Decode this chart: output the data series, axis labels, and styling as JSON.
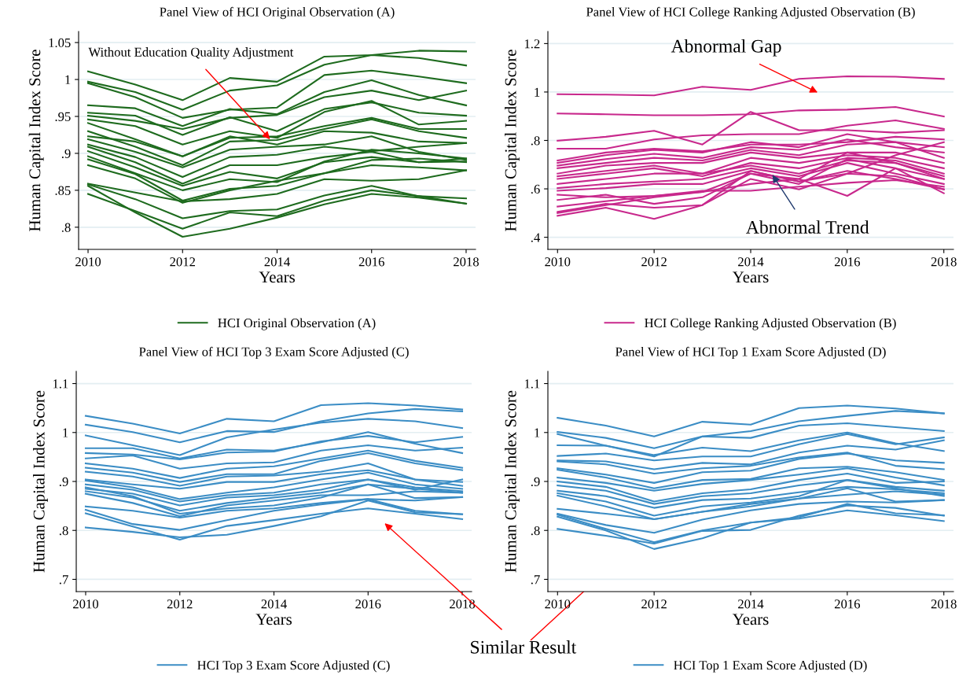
{
  "chart_data": [
    {
      "type": "line",
      "title": "Panel View of HCI Original Observation (A)",
      "xlabel": "Years",
      "ylabel": "Human Capital Index Score",
      "x": [
        2010,
        2011,
        2012,
        2013,
        2014,
        2015,
        2016,
        2017,
        2018
      ],
      "xlim": [
        2009.8,
        2018.2
      ],
      "xticks": [
        2010,
        2012,
        2014,
        2016,
        2018
      ],
      "ylim": [
        0.77,
        1.065
      ],
      "yticks": [
        {
          "value": 0.8,
          "label": ".8"
        },
        {
          "value": 0.85,
          "label": ".85"
        },
        {
          "value": 0.9,
          "label": ".9"
        },
        {
          "value": 0.95,
          "label": ".95"
        },
        {
          "value": 1,
          "label": "1"
        },
        {
          "value": 1.05,
          "label": "1.05"
        }
      ],
      "grid": "y",
      "legend": "bottom",
      "annotations": [
        {
          "text": "Without Education Quality Adjustment",
          "x": 2013.85,
          "y": 0.919
        }
      ],
      "series": [
        {
          "name": "HCI Original Observation (A)",
          "color": "#1e6b1e",
          "values": [
            1.011,
            0.993,
            0.972,
            1.002,
            0.997,
            1.031,
            1.033,
            1.039,
            1.038
          ]
        },
        {
          "color": "#1e6b1e",
          "values": [
            0.997,
            0.983,
            0.959,
            0.985,
            0.992,
            1.02,
            1.033,
            1.029,
            1.019
          ]
        },
        {
          "color": "#1e6b1e",
          "values": [
            0.995,
            0.976,
            0.948,
            0.959,
            0.962,
            1.006,
            1.012,
            1.004,
            0.995
          ]
        },
        {
          "color": "#1e6b1e",
          "values": [
            0.965,
            0.961,
            0.937,
            0.96,
            0.953,
            0.983,
            0.999,
            0.979,
            0.965
          ]
        },
        {
          "color": "#1e6b1e",
          "values": [
            0.951,
            0.944,
            0.933,
            0.948,
            0.952,
            0.976,
            0.985,
            0.972,
            0.985
          ]
        },
        {
          "color": "#1e6b1e",
          "values": [
            0.955,
            0.951,
            0.925,
            0.949,
            0.93,
            0.96,
            0.969,
            0.955,
            0.951
          ]
        },
        {
          "color": "#1e6b1e",
          "values": [
            0.946,
            0.937,
            0.912,
            0.93,
            0.921,
            0.956,
            0.971,
            0.939,
            0.944
          ]
        },
        {
          "color": "#1e6b1e",
          "values": [
            0.941,
            0.919,
            0.896,
            0.921,
            0.923,
            0.937,
            0.948,
            0.933,
            0.933
          ]
        },
        {
          "color": "#1e6b1e",
          "values": [
            0.93,
            0.909,
            0.884,
            0.916,
            0.918,
            0.933,
            0.946,
            0.93,
            0.921
          ]
        },
        {
          "color": "#1e6b1e",
          "values": [
            0.923,
            0.916,
            0.896,
            0.923,
            0.912,
            0.93,
            0.928,
            0.916,
            0.914
          ]
        },
        {
          "color": "#1e6b1e",
          "values": [
            0.919,
            0.902,
            0.881,
            0.905,
            0.909,
            0.912,
            0.923,
            0.902,
            0.891
          ]
        },
        {
          "color": "#1e6b1e",
          "values": [
            0.912,
            0.895,
            0.868,
            0.895,
            0.898,
            0.909,
            0.903,
            0.909,
            0.914
          ]
        },
        {
          "color": "#1e6b1e",
          "values": [
            0.909,
            0.888,
            0.859,
            0.884,
            0.884,
            0.895,
            0.902,
            0.888,
            0.889
          ]
        },
        {
          "color": "#1e6b1e",
          "values": [
            0.903,
            0.881,
            0.856,
            0.875,
            0.866,
            0.888,
            0.895,
            0.888,
            0.893
          ]
        },
        {
          "color": "#1e6b1e",
          "values": [
            0.896,
            0.873,
            0.85,
            0.865,
            0.861,
            0.889,
            0.905,
            0.9,
            0.893
          ]
        },
        {
          "color": "#1e6b1e",
          "values": [
            0.892,
            0.872,
            0.836,
            0.852,
            0.856,
            0.873,
            0.891,
            0.893,
            0.888
          ]
        },
        {
          "color": "#1e6b1e",
          "values": [
            0.884,
            0.866,
            0.833,
            0.85,
            0.863,
            0.873,
            0.884,
            0.881,
            0.877
          ]
        },
        {
          "color": "#1e6b1e",
          "values": [
            0.859,
            0.847,
            0.835,
            0.838,
            0.845,
            0.865,
            0.863,
            0.865,
            0.877
          ]
        },
        {
          "color": "#1e6b1e",
          "values": [
            0.858,
            0.838,
            0.812,
            0.822,
            0.824,
            0.843,
            0.856,
            0.842,
            0.839
          ]
        },
        {
          "color": "#1e6b1e",
          "values": [
            0.845,
            0.822,
            0.798,
            0.82,
            0.815,
            0.836,
            0.85,
            0.842,
            0.832
          ]
        },
        {
          "color": "#1e6b1e",
          "values": [
            0.856,
            0.82,
            0.787,
            0.798,
            0.813,
            0.831,
            0.845,
            0.84,
            0.832
          ]
        }
      ]
    },
    {
      "type": "line",
      "title": "Panel View of HCI College Ranking Adjusted Observation (B)",
      "xlabel": "Years",
      "ylabel": "Human Capital Index Score",
      "x": [
        2010,
        2011,
        2012,
        2013,
        2014,
        2015,
        2016,
        2017,
        2018
      ],
      "xlim": [
        2009.8,
        2018.2
      ],
      "xticks": [
        2010,
        2012,
        2014,
        2016,
        2018
      ],
      "ylim": [
        0.35,
        1.25
      ],
      "yticks": [
        {
          "value": 0.4,
          "label": ".4"
        },
        {
          "value": 0.6,
          "label": ".6"
        },
        {
          "value": 0.8,
          "label": ".8"
        },
        {
          "value": 1,
          "label": "1"
        },
        {
          "value": 1.2,
          "label": "1.2"
        }
      ],
      "grid": "y",
      "legend": "bottom",
      "annotations": [
        "Abnormal Gap",
        {
          "text": "Abnormal Trend",
          "x": 2014.45,
          "y": 0.658
        }
      ],
      "series": [
        {
          "name": "HCI College Ranking Adjusted Observation (B)",
          "color": "#c8288c",
          "values": [
            0.991,
            0.989,
            0.986,
            1.022,
            1.009,
            1.054,
            1.065,
            1.063,
            1.054
          ]
        },
        {
          "color": "#c8288c",
          "values": [
            0.911,
            0.908,
            0.904,
            0.904,
            0.908,
            0.924,
            0.927,
            0.938,
            0.899
          ]
        },
        {
          "color": "#c8288c",
          "values": [
            0.799,
            0.815,
            0.84,
            0.783,
            0.918,
            0.842,
            0.842,
            0.832,
            0.842
          ]
        },
        {
          "color": "#c8288c",
          "values": [
            0.766,
            0.766,
            0.804,
            0.821,
            0.826,
            0.826,
            0.861,
            0.883,
            0.848
          ]
        },
        {
          "color": "#c8288c",
          "values": [
            0.717,
            0.75,
            0.766,
            0.755,
            0.783,
            0.783,
            0.793,
            0.815,
            0.804
          ]
        },
        {
          "color": "#c8288c",
          "values": [
            0.707,
            0.739,
            0.761,
            0.75,
            0.793,
            0.772,
            0.826,
            0.793,
            0.772
          ]
        },
        {
          "color": "#c8288c",
          "values": [
            0.696,
            0.723,
            0.745,
            0.728,
            0.772,
            0.761,
            0.804,
            0.772,
            0.75
          ]
        },
        {
          "color": "#c8288c",
          "values": [
            0.685,
            0.707,
            0.728,
            0.717,
            0.761,
            0.739,
            0.783,
            0.793,
            0.728
          ]
        },
        {
          "color": "#c8288c",
          "values": [
            0.663,
            0.696,
            0.707,
            0.707,
            0.75,
            0.728,
            0.75,
            0.75,
            0.707
          ]
        },
        {
          "color": "#c8288c",
          "values": [
            0.652,
            0.674,
            0.696,
            0.663,
            0.728,
            0.707,
            0.739,
            0.728,
            0.685
          ]
        },
        {
          "color": "#c8288c",
          "values": [
            0.641,
            0.663,
            0.685,
            0.652,
            0.707,
            0.685,
            0.728,
            0.717,
            0.663
          ]
        },
        {
          "color": "#c8288c",
          "values": [
            0.62,
            0.641,
            0.663,
            0.663,
            0.696,
            0.663,
            0.717,
            0.707,
            0.641
          ]
        },
        {
          "color": "#c8288c",
          "values": [
            0.603,
            0.62,
            0.63,
            0.641,
            0.685,
            0.652,
            0.707,
            0.663,
            0.62
          ]
        },
        {
          "color": "#c8288c",
          "values": [
            0.592,
            0.603,
            0.62,
            0.62,
            0.674,
            0.63,
            0.663,
            0.652,
            0.598
          ]
        },
        {
          "color": "#c8288c",
          "values": [
            0.576,
            0.565,
            0.571,
            0.587,
            0.663,
            0.62,
            0.723,
            0.685,
            0.641
          ]
        },
        {
          "color": "#c8288c",
          "values": [
            0.554,
            0.576,
            0.538,
            0.565,
            0.663,
            0.641,
            0.571,
            0.685,
            0.582
          ]
        },
        {
          "color": "#c8288c",
          "values": [
            0.527,
            0.549,
            0.571,
            0.592,
            0.592,
            0.609,
            0.625,
            0.636,
            0.609
          ]
        },
        {
          "color": "#c8288c",
          "values": [
            0.505,
            0.538,
            0.522,
            0.533,
            0.641,
            0.598,
            0.663,
            0.739,
            0.793
          ]
        },
        {
          "color": "#c8288c",
          "values": [
            0.489,
            0.522,
            0.476,
            0.533,
            0.674,
            0.63,
            0.674,
            0.641,
            0.598
          ]
        },
        {
          "color": "#c8288c",
          "values": [
            0.5,
            0.533,
            0.565,
            0.587,
            0.62,
            0.641,
            0.75,
            0.707,
            0.652
          ]
        }
      ]
    },
    {
      "type": "line",
      "title": "Panel View of HCI Top 3 Exam Score Adjusted (C)",
      "xlabel": "Years",
      "ylabel": "Human Capital Index Score",
      "x": [
        2010,
        2011,
        2012,
        2013,
        2014,
        2015,
        2016,
        2017,
        2018
      ],
      "xlim": [
        2009.8,
        2018.2
      ],
      "xticks": [
        2010,
        2012,
        2014,
        2016,
        2018
      ],
      "ylim": [
        0.675,
        1.125
      ],
      "yticks": [
        {
          "value": 0.7,
          "label": ".7"
        },
        {
          "value": 0.8,
          "label": ".8"
        },
        {
          "value": 0.9,
          "label": ".9"
        },
        {
          "value": 1,
          "label": "1"
        },
        {
          "value": 1.1,
          "label": "1.1"
        }
      ],
      "grid": "y",
      "legend": "bottom",
      "annotations": [
        "Similar Result"
      ],
      "series": [
        {
          "name": "HCI Top 3 Exam Score Adjusted (C)",
          "color": "#3b8dc5",
          "values": [
            1.034,
            1.018,
            0.998,
            1.028,
            1.023,
            1.056,
            1.06,
            1.055,
            1.047
          ]
        },
        {
          "color": "#3b8dc5",
          "values": [
            1.016,
            1.001,
            0.98,
            1.003,
            1.001,
            1.023,
            1.039,
            1.048,
            1.043
          ]
        },
        {
          "color": "#3b8dc5",
          "values": [
            0.994,
            0.974,
            0.954,
            0.99,
            1.006,
            1.02,
            1.028,
            1.023,
            1.009
          ]
        },
        {
          "color": "#3b8dc5",
          "values": [
            0.968,
            0.968,
            0.947,
            0.965,
            0.963,
            0.98,
            1.001,
            0.977,
            0.958
          ]
        },
        {
          "color": "#3b8dc5",
          "values": [
            0.958,
            0.955,
            0.945,
            0.959,
            0.961,
            0.982,
            0.993,
            0.98,
            0.991
          ]
        },
        {
          "color": "#3b8dc5",
          "values": [
            0.947,
            0.953,
            0.926,
            0.937,
            0.939,
            0.963,
            0.974,
            0.963,
            0.969
          ]
        },
        {
          "color": "#3b8dc5",
          "values": [
            0.937,
            0.926,
            0.907,
            0.926,
            0.931,
            0.947,
            0.963,
            0.942,
            0.928
          ]
        },
        {
          "color": "#3b8dc5",
          "values": [
            0.928,
            0.918,
            0.899,
            0.915,
            0.915,
            0.942,
            0.958,
            0.937,
            0.923
          ]
        },
        {
          "color": "#3b8dc5",
          "values": [
            0.92,
            0.91,
            0.891,
            0.91,
            0.912,
            0.92,
            0.937,
            0.904,
            0.899
          ]
        },
        {
          "color": "#3b8dc5",
          "values": [
            0.904,
            0.894,
            0.885,
            0.899,
            0.899,
            0.915,
            0.923,
            0.904,
            0.891
          ]
        },
        {
          "color": "#3b8dc5",
          "values": [
            0.902,
            0.888,
            0.864,
            0.877,
            0.888,
            0.904,
            0.918,
            0.894,
            0.885
          ]
        },
        {
          "color": "#3b8dc5",
          "values": [
            0.894,
            0.883,
            0.859,
            0.872,
            0.877,
            0.894,
            0.904,
            0.888,
            0.88
          ]
        },
        {
          "color": "#3b8dc5",
          "values": [
            0.885,
            0.875,
            0.851,
            0.867,
            0.872,
            0.883,
            0.904,
            0.883,
            0.904
          ]
        },
        {
          "color": "#3b8dc5",
          "values": [
            0.88,
            0.867,
            0.84,
            0.856,
            0.867,
            0.877,
            0.894,
            0.885,
            0.877
          ]
        },
        {
          "color": "#3b8dc5",
          "values": [
            0.875,
            0.856,
            0.829,
            0.851,
            0.861,
            0.872,
            0.872,
            0.88,
            0.877
          ]
        },
        {
          "color": "#3b8dc5",
          "values": [
            0.888,
            0.87,
            0.834,
            0.845,
            0.851,
            0.867,
            0.894,
            0.866,
            0.868
          ]
        },
        {
          "color": "#3b8dc5",
          "values": [
            0.849,
            0.84,
            0.826,
            0.84,
            0.845,
            0.856,
            0.864,
            0.861,
            0.868
          ]
        },
        {
          "color": "#3b8dc5",
          "values": [
            0.842,
            0.813,
            0.801,
            0.821,
            0.84,
            0.853,
            0.864,
            0.84,
            0.833
          ]
        },
        {
          "color": "#3b8dc5",
          "values": [
            0.835,
            0.808,
            0.781,
            0.809,
            0.821,
            0.834,
            0.845,
            0.834,
            0.823
          ]
        },
        {
          "color": "#3b8dc5",
          "values": [
            0.806,
            0.797,
            0.786,
            0.791,
            0.809,
            0.829,
            0.861,
            0.837,
            0.833
          ]
        }
      ]
    },
    {
      "type": "line",
      "title": "Panel View of HCI Top 1 Exam Score Adjusted (D)",
      "xlabel": "Years",
      "ylabel": "Human Capital Index Score",
      "x": [
        2010,
        2011,
        2012,
        2013,
        2014,
        2015,
        2016,
        2017,
        2018
      ],
      "xlim": [
        2009.8,
        2018.2
      ],
      "xticks": [
        2010,
        2012,
        2014,
        2016,
        2018
      ],
      "ylim": [
        0.675,
        1.125
      ],
      "yticks": [
        {
          "value": 0.7,
          "label": ".7"
        },
        {
          "value": 0.8,
          "label": ".8"
        },
        {
          "value": 0.9,
          "label": ".9"
        },
        {
          "value": 1,
          "label": "1"
        },
        {
          "value": 1.1,
          "label": "1.1"
        }
      ],
      "grid": "y",
      "legend": "bottom",
      "series": [
        {
          "name": "HCI Top 1 Exam Score Adjusted (D)",
          "color": "#3b8dc5",
          "values": [
            1.03,
            1.014,
            0.992,
            1.022,
            1.016,
            1.05,
            1.055,
            1.049,
            1.039
          ]
        },
        {
          "color": "#3b8dc5",
          "values": [
            1.001,
            0.989,
            0.968,
            0.992,
            1.003,
            1.023,
            1.034,
            1.044,
            1.039
          ]
        },
        {
          "color": "#3b8dc5",
          "values": [
            0.997,
            0.973,
            0.951,
            0.992,
            0.989,
            1.014,
            1.019,
            1.011,
            1.003
          ]
        },
        {
          "color": "#3b8dc5",
          "values": [
            0.974,
            0.973,
            0.954,
            0.969,
            0.962,
            0.984,
            1.0,
            0.978,
            0.962
          ]
        },
        {
          "color": "#3b8dc5",
          "values": [
            0.952,
            0.957,
            0.943,
            0.951,
            0.951,
            0.976,
            0.997,
            0.976,
            0.99
          ]
        },
        {
          "color": "#3b8dc5",
          "values": [
            0.943,
            0.941,
            0.925,
            0.938,
            0.935,
            0.959,
            0.973,
            0.965,
            0.984
          ]
        },
        {
          "color": "#3b8dc5",
          "values": [
            0.941,
            0.935,
            0.916,
            0.927,
            0.932,
            0.949,
            0.959,
            0.932,
            0.925
          ]
        },
        {
          "color": "#3b8dc5",
          "values": [
            0.927,
            0.914,
            0.897,
            0.919,
            0.922,
            0.946,
            0.957,
            0.943,
            0.938
          ]
        },
        {
          "color": "#3b8dc5",
          "values": [
            0.924,
            0.908,
            0.886,
            0.903,
            0.905,
            0.927,
            0.93,
            0.919,
            0.903
          ]
        },
        {
          "color": "#3b8dc5",
          "values": [
            0.908,
            0.897,
            0.881,
            0.895,
            0.903,
            0.914,
            0.927,
            0.908,
            0.892
          ]
        },
        {
          "color": "#3b8dc5",
          "values": [
            0.9,
            0.889,
            0.859,
            0.876,
            0.884,
            0.903,
            0.916,
            0.897,
            0.9
          ]
        },
        {
          "color": "#3b8dc5",
          "values": [
            0.892,
            0.881,
            0.854,
            0.87,
            0.876,
            0.892,
            0.903,
            0.889,
            0.881
          ]
        },
        {
          "color": "#3b8dc5",
          "values": [
            0.881,
            0.87,
            0.846,
            0.862,
            0.865,
            0.878,
            0.889,
            0.884,
            0.876
          ]
        },
        {
          "color": "#3b8dc5",
          "values": [
            0.876,
            0.859,
            0.83,
            0.849,
            0.857,
            0.87,
            0.903,
            0.886,
            0.87
          ]
        },
        {
          "color": "#3b8dc5",
          "values": [
            0.871,
            0.849,
            0.823,
            0.838,
            0.854,
            0.865,
            0.873,
            0.88,
            0.873
          ]
        },
        {
          "color": "#3b8dc5",
          "values": [
            0.844,
            0.834,
            0.823,
            0.838,
            0.849,
            0.865,
            0.886,
            0.859,
            0.862
          ]
        },
        {
          "color": "#3b8dc5",
          "values": [
            0.834,
            0.811,
            0.795,
            0.822,
            0.841,
            0.854,
            0.859,
            0.857,
            0.862
          ]
        },
        {
          "color": "#3b8dc5",
          "values": [
            0.832,
            0.803,
            0.776,
            0.8,
            0.816,
            0.827,
            0.854,
            0.835,
            0.831
          ]
        },
        {
          "color": "#3b8dc5",
          "values": [
            0.828,
            0.8,
            0.762,
            0.784,
            0.816,
            0.824,
            0.841,
            0.831,
            0.819
          ]
        },
        {
          "color": "#3b8dc5",
          "values": [
            0.803,
            0.789,
            0.773,
            0.799,
            0.801,
            0.83,
            0.851,
            0.846,
            0.83
          ]
        }
      ]
    }
  ]
}
